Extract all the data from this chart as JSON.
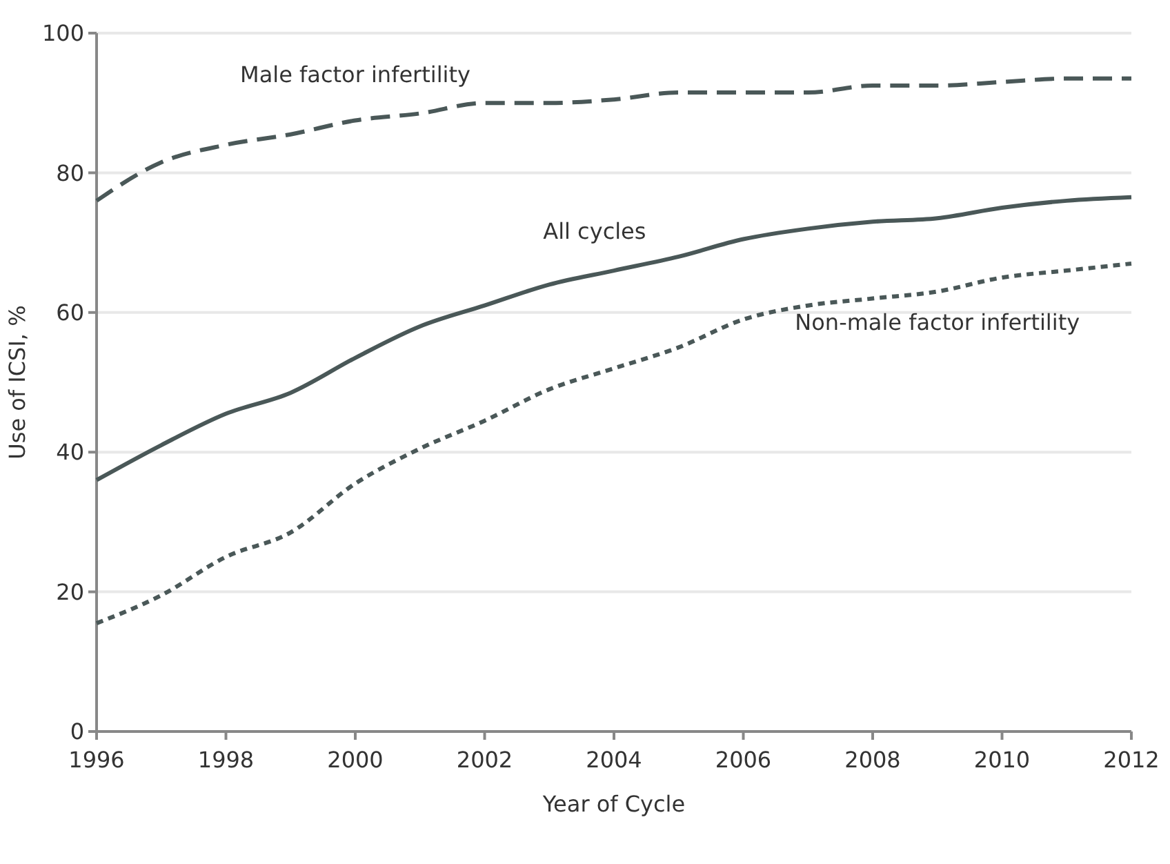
{
  "chart_data": {
    "type": "line",
    "xlabel": "Year of Cycle",
    "ylabel": "Use of ICSI, %",
    "x": [
      1996,
      1997,
      1998,
      1999,
      2000,
      2001,
      2002,
      2003,
      2004,
      2005,
      2006,
      2007,
      2008,
      2009,
      2010,
      2011,
      2012
    ],
    "xlim": [
      1996,
      2012
    ],
    "xticks": [
      1996,
      1998,
      2000,
      2002,
      2004,
      2006,
      2008,
      2010,
      2012
    ],
    "ylim": [
      0,
      100
    ],
    "yticks": [
      0,
      20,
      40,
      60,
      80,
      100
    ],
    "grid": "y",
    "marker": "none",
    "series": [
      {
        "name": "Male factor infertility",
        "color": "#4a5858",
        "line_style": "dashed",
        "values": [
          76,
          81.5,
          84,
          85.5,
          87.5,
          88.5,
          90,
          90,
          90.5,
          91.5,
          91.5,
          91.5,
          92.5,
          92.5,
          93,
          93.5,
          93.5
        ]
      },
      {
        "name": "All cycles",
        "color": "#4a5858",
        "line_style": "solid",
        "values": [
          36,
          41,
          45.5,
          48.5,
          53.5,
          58,
          61,
          64,
          66,
          68,
          70.5,
          72,
          73,
          73.5,
          75,
          76,
          76.5
        ]
      },
      {
        "name": "Non-male factor infertility",
        "color": "#4a5858",
        "line_style": "dotted",
        "values": [
          15.5,
          19.5,
          25,
          28.5,
          35.5,
          40.5,
          44.5,
          49,
          52,
          55,
          59,
          61,
          62,
          63,
          65,
          66,
          67
        ]
      }
    ]
  }
}
